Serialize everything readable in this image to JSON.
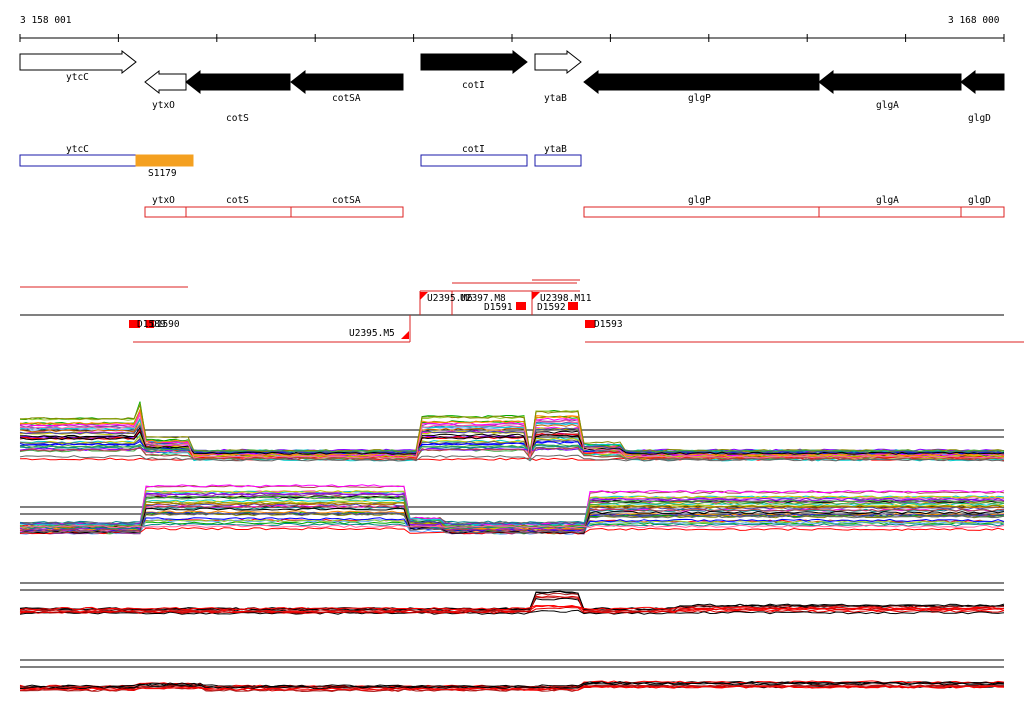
{
  "ruler": {
    "start_label": "3 158 001",
    "end_label": "3 168 000"
  },
  "colors": {
    "arrow_fill": "#000000",
    "arrow_outline": "#000000",
    "box_blue": "#1a1aaa",
    "box_red": "#dd2222",
    "orange": "#f4a020",
    "marker_red": "#ff0000",
    "track_line": "#000000"
  },
  "genes": [
    {
      "name": "ytcC",
      "label_row": "top",
      "filled": false,
      "direction": "right"
    },
    {
      "name": "ytxO",
      "label_row": "bottom",
      "filled": false,
      "direction": "left"
    },
    {
      "name": "cotS",
      "label_row": "bottom",
      "filled": true,
      "direction": "left"
    },
    {
      "name": "cotSA",
      "label_row": "bottom",
      "filled": true,
      "direction": "left"
    },
    {
      "name": "cotI",
      "label_row": "bottom",
      "filled": true,
      "direction": "right"
    },
    {
      "name": "ytaB",
      "label_row": "bottom",
      "filled": false,
      "direction": "right"
    },
    {
      "name": "glgP",
      "label_row": "bottom",
      "filled": true,
      "direction": "left"
    },
    {
      "name": "glgA",
      "label_row": "bottom",
      "filled": true,
      "direction": "left"
    },
    {
      "name": "glgD",
      "label_row": "bottom",
      "filled": true,
      "direction": "left"
    }
  ],
  "blue_boxes": [
    "ytcC",
    "cotI",
    "ytaB"
  ],
  "orange_feature": "S1179",
  "red_boxes": [
    "ytxO",
    "cotS",
    "cotSA",
    "glgP",
    "glgA",
    "glgD"
  ],
  "segments": {
    "upper": [
      "U2395.M6",
      "U2397.M8",
      "U2398.M11"
    ],
    "lower": [
      "U2395.M5"
    ],
    "down_markers": [
      "D1589",
      "D1590",
      "D1591",
      "D1592",
      "D1593"
    ]
  },
  "expression_tracks": [
    {
      "name": "expression-track-1"
    },
    {
      "name": "expression-track-2"
    },
    {
      "name": "expression-track-3"
    },
    {
      "name": "expression-track-4"
    }
  ]
}
